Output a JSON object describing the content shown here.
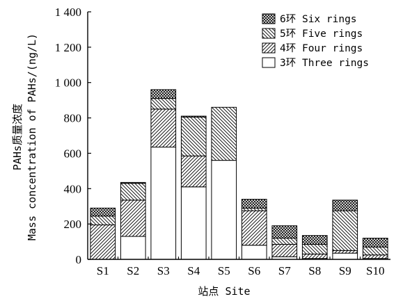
{
  "chart_data": {
    "type": "bar",
    "stacked": true,
    "title": "",
    "xlabel": "站点 Site",
    "ylabel_line1": "PAHs质量浓度",
    "ylabel_line2": "Mass concentration of PAHs/(ng/L)",
    "ylim": [
      0,
      1400
    ],
    "yticks": [
      0,
      200,
      400,
      600,
      800,
      1000,
      1200,
      1400
    ],
    "ytick_labels": [
      "0",
      "200",
      "400",
      "600",
      "800",
      "1 000",
      "1 200",
      "1 400"
    ],
    "categories": [
      "S1",
      "S2",
      "S3",
      "S4",
      "S5",
      "S6",
      "S7",
      "S8",
      "S9",
      "S10"
    ],
    "series": [
      {
        "name": "3环 Three rings",
        "fill": "white",
        "values": [
          0,
          130,
          635,
          410,
          560,
          80,
          15,
          5,
          35,
          5
        ]
      },
      {
        "name": "4环 Four rings",
        "fill": "diag-up",
        "values": [
          195,
          205,
          215,
          175,
          0,
          195,
          70,
          25,
          15,
          20
        ]
      },
      {
        "name": "5环 Five rings",
        "fill": "diag-down",
        "values": [
          50,
          95,
          60,
          220,
          300,
          15,
          35,
          55,
          225,
          45
        ]
      },
      {
        "name": "6环 Six rings",
        "fill": "cross",
        "values": [
          45,
          5,
          50,
          5,
          0,
          50,
          70,
          50,
          60,
          50
        ]
      }
    ],
    "legend_position": "top-right",
    "grid": false
  }
}
